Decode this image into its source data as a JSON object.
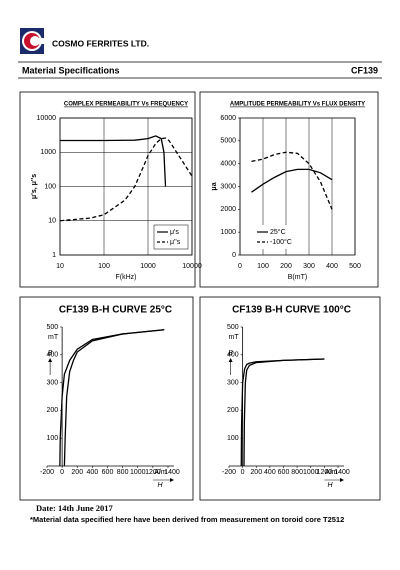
{
  "header": {
    "company": "COSMO FERRITES LTD.",
    "section": "Material Specifications",
    "material": "CF139"
  },
  "chart_data": [
    {
      "type": "line",
      "title": "COMPLEX PERMEABILITY  Vs FREQUENCY",
      "x_label": "F(kHz)",
      "y_label": "μ's, μ''s",
      "xscale": "log",
      "yscale": "log",
      "xlim": [
        10,
        10000
      ],
      "ylim": [
        1,
        10000
      ],
      "xticks": [
        10,
        100,
        1000,
        10000
      ],
      "yticks": [
        1,
        10,
        100,
        1000,
        10000
      ],
      "grid": "both",
      "frame": true,
      "legend": "lower right",
      "series": [
        {
          "name": "μ's",
          "color": "#000000",
          "style": "solid",
          "x": [
            10,
            100,
            500,
            1000,
            1500,
            2000,
            2300,
            2500
          ],
          "values": [
            2200,
            2200,
            2250,
            2500,
            3000,
            2500,
            1000,
            100
          ]
        },
        {
          "name": "μ''s",
          "color": "#000000",
          "style": "dashed",
          "x": [
            10,
            50,
            100,
            300,
            500,
            800,
            1000,
            1500,
            2000,
            2500,
            3000,
            5000,
            10000
          ],
          "values": [
            10,
            12,
            15,
            40,
            100,
            400,
            800,
            1800,
            2500,
            2600,
            2200,
            800,
            200
          ]
        }
      ]
    },
    {
      "type": "line",
      "title": "AMPLITUDE PERMEABILITY  Vs FLUX DENSITY",
      "x_label": "B(mT)",
      "y_label": "μa",
      "xlim": [
        0,
        500
      ],
      "ylim": [
        0,
        6000
      ],
      "xticks": [
        0,
        100,
        200,
        300,
        400,
        500
      ],
      "yticks": [
        0,
        1000,
        2000,
        3000,
        4000,
        5000,
        6000
      ],
      "grid": "x",
      "frame": true,
      "legend": "lower left",
      "series": [
        {
          "name": "25°C",
          "color": "#000000",
          "style": "solid",
          "x": [
            50,
            100,
            150,
            200,
            250,
            300,
            350,
            400
          ],
          "values": [
            2750,
            3100,
            3400,
            3650,
            3750,
            3750,
            3600,
            3300
          ]
        },
        {
          "name": "-100°C",
          "color": "#000000",
          "style": "dashed",
          "x": [
            50,
            100,
            150,
            200,
            250,
            300,
            350,
            400
          ],
          "values": [
            4100,
            4200,
            4400,
            4500,
            4450,
            4000,
            3200,
            2000
          ]
        }
      ]
    },
    {
      "type": "line",
      "title": "CF139  B-H  CURVE 25°C",
      "x_label": "H",
      "x_unit": "A/m",
      "y_label": "B",
      "y_unit": "mT",
      "xlim": [
        -200,
        1400
      ],
      "ylim": [
        0,
        500
      ],
      "xticks": [
        -200,
        0,
        200,
        400,
        600,
        800,
        1000,
        1200,
        1400
      ],
      "yticks": [
        100,
        200,
        300,
        400,
        500
      ],
      "grid": "none",
      "frame": false,
      "series": [
        {
          "color": "#000000",
          "style": "solid",
          "x": [
            -30,
            -25,
            0,
            30,
            100,
            200,
            400,
            800,
            1350
          ],
          "values": [
            0,
            100,
            250,
            330,
            380,
            420,
            455,
            475,
            490
          ]
        },
        {
          "color": "#000000",
          "style": "solid",
          "x": [
            30,
            40,
            60,
            100,
            150,
            200,
            400,
            800,
            1350
          ],
          "values": [
            0,
            100,
            250,
            340,
            380,
            410,
            450,
            475,
            490
          ]
        }
      ]
    },
    {
      "type": "line",
      "title": "CF139  B-H  CURVE 100°C",
      "x_label": "H",
      "x_unit": "A/m",
      "y_label": "B",
      "y_unit": "mT",
      "xlim": [
        -200,
        1400
      ],
      "ylim": [
        0,
        500
      ],
      "xticks": [
        -200,
        0,
        200,
        400,
        600,
        800,
        1000,
        1200,
        1400
      ],
      "yticks": [
        100,
        200,
        300,
        400,
        500
      ],
      "grid": "none",
      "frame": false,
      "series": [
        {
          "color": "#000000",
          "style": "solid",
          "x": [
            -20,
            -15,
            0,
            30,
            60,
            100,
            200,
            600,
            1200
          ],
          "values": [
            0,
            150,
            300,
            350,
            365,
            370,
            375,
            380,
            385
          ]
        },
        {
          "color": "#000000",
          "style": "solid",
          "x": [
            20,
            25,
            40,
            60,
            100,
            200,
            600,
            1200
          ],
          "values": [
            0,
            150,
            300,
            345,
            362,
            372,
            380,
            385
          ]
        }
      ]
    }
  ],
  "footer": {
    "date": "Date: 14th June 2017",
    "note": "*Material data specified here have been derived from measurement on toroid core T2512"
  }
}
